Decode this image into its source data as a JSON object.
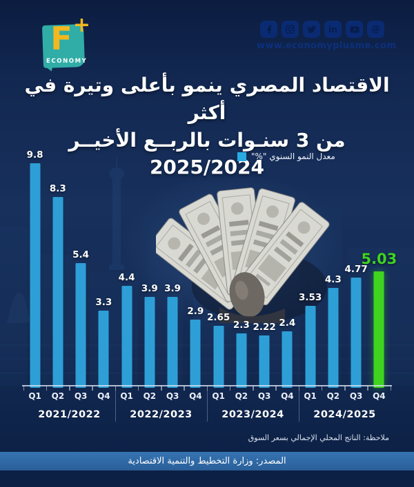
{
  "brand": {
    "logo_letter": "F",
    "logo_plus": "+",
    "logo_caption": "ECONOMY",
    "website": "www.economyplusme.com",
    "social_icons": [
      "facebook",
      "instagram",
      "twitter",
      "linkedin",
      "youtube",
      "threads"
    ]
  },
  "title": {
    "line1": "الاقتصاد المصري ينمو بأعلى وتيرة في أكثر",
    "line2": "من 3 سنـوات بالربــع الأخيــر 2025/2024"
  },
  "legend": {
    "label": "معدل النمو السنوي \"%\"",
    "swatch_color": "#29abe2"
  },
  "chart_data": {
    "type": "bar",
    "title": "معدل النمو السنوي \"%\"",
    "categories": [
      "Q1",
      "Q2",
      "Q3",
      "Q4",
      "Q1",
      "Q2",
      "Q3",
      "Q4",
      "Q1",
      "Q2",
      "Q3",
      "Q4",
      "Q1",
      "Q2",
      "Q3",
      "Q4"
    ],
    "values": [
      9.8,
      8.3,
      5.4,
      3.3,
      4.4,
      3.9,
      3.9,
      2.9,
      2.65,
      2.3,
      2.22,
      2.4,
      3.53,
      4.3,
      4.77,
      5.03
    ],
    "labels": [
      "9.8",
      "8.3",
      "5.4",
      "3.3",
      "4.4",
      "3.9",
      "3.9",
      "2.9",
      "2.65",
      "2.3",
      "2.22",
      "2.4",
      "3.53",
      "4.3",
      "4.77",
      "5.03"
    ],
    "year_groups": [
      "2021/2022",
      "2022/2023",
      "2023/2024",
      "2024/2025"
    ],
    "highlight_index": 15,
    "bar_color": "#2d9fd6",
    "highlight_color": "#3fd41f",
    "xlabel": "",
    "ylabel": "",
    "ylim": [
      0,
      10.2
    ],
    "grid": false,
    "legend_position": "top-center"
  },
  "note": "ملاحظة: الناتج المحلي الإجمالي بسعر السوق",
  "footer": {
    "source": "المصدر: وزارة التخطيط والتنمية الاقتصادية"
  }
}
